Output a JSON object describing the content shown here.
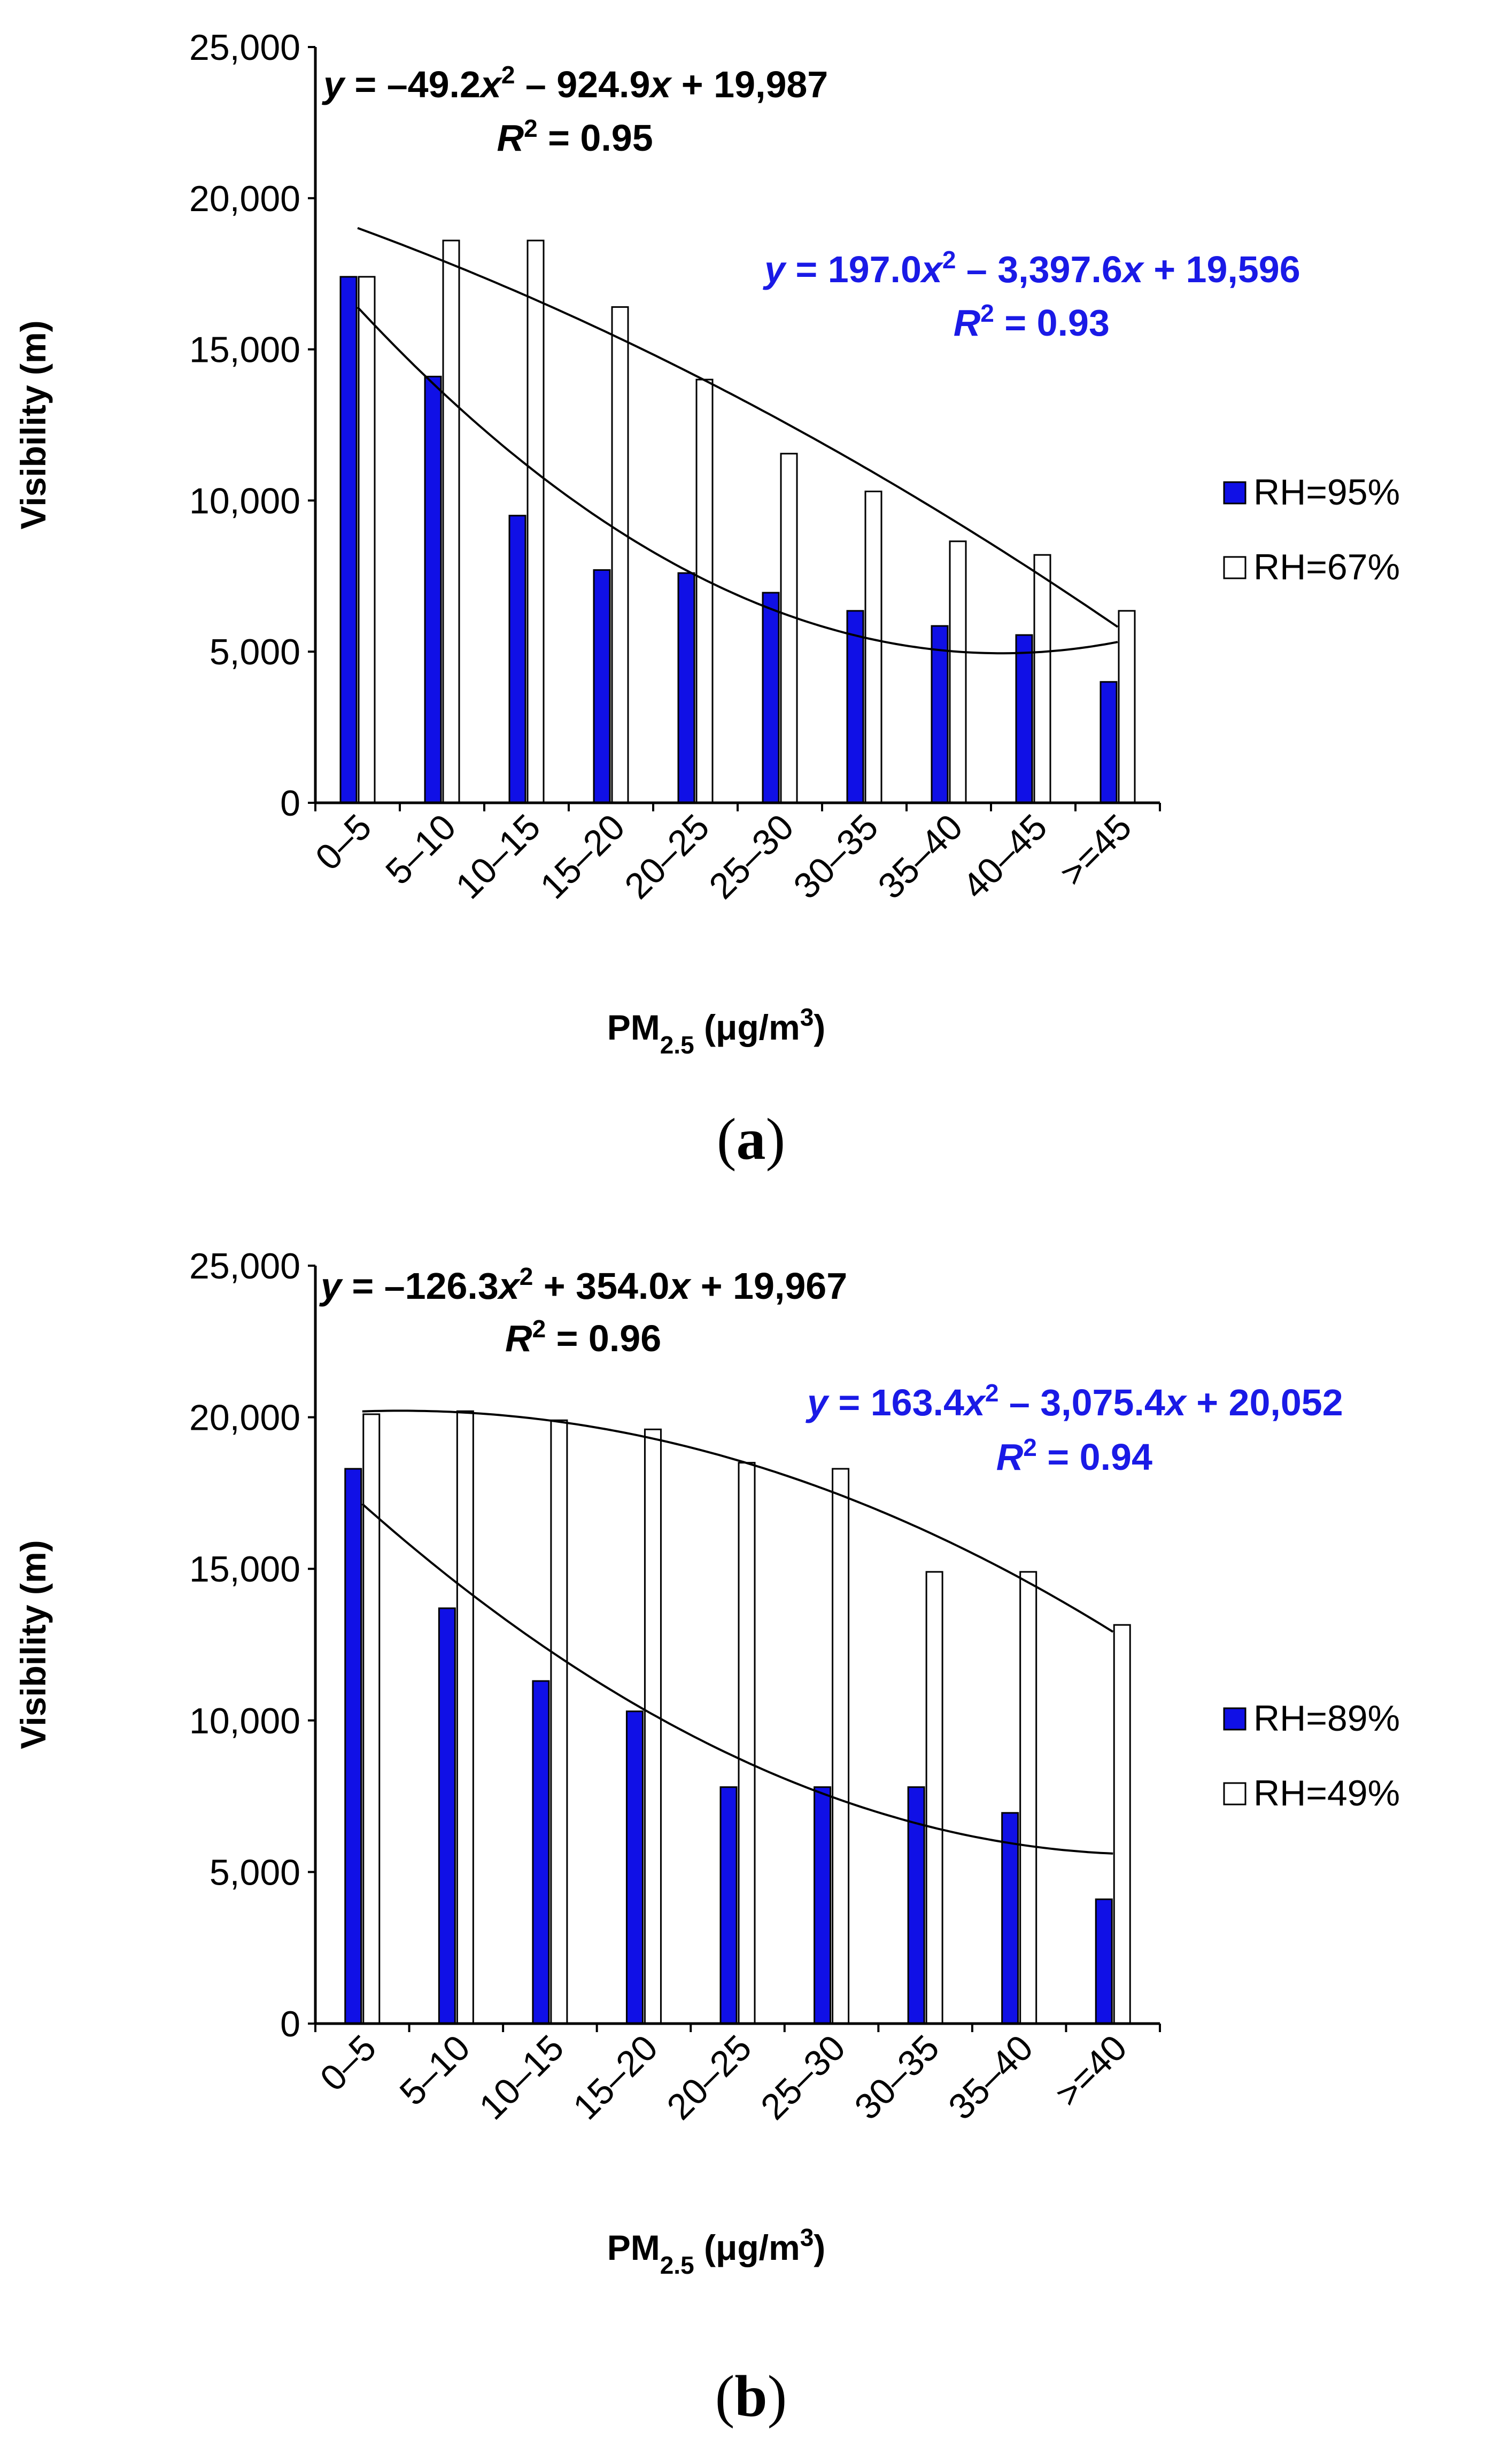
{
  "colors": {
    "blue_bar": "#1010E6",
    "white_bar": "#FFFFFF",
    "blue_text": "#1A1AE6",
    "black": "#000000"
  },
  "chart_data": [
    {
      "type": "bar",
      "panel_label": "a",
      "categories": [
        "0–5",
        "5–10",
        "10–15",
        "15–20",
        "20–25",
        "25–30",
        "30–35",
        "35–40",
        "40–45",
        ">=45"
      ],
      "series": [
        {
          "name": "RH=95%",
          "color": "#1010E6",
          "values": [
            17400,
            14100,
            9500,
            7700,
            7600,
            6950,
            6350,
            5850,
            5550,
            4000
          ]
        },
        {
          "name": "RH=67%",
          "color": "#FFFFFF",
          "values": [
            17400,
            18600,
            18600,
            16400,
            14000,
            11550,
            10300,
            8650,
            8200,
            6350
          ]
        }
      ],
      "trendlines": [
        {
          "series": "RH=95%",
          "equation_parts": [
            "y",
            " = 197.0",
            "x",
            "2",
            " – 3,397.6",
            "x",
            " + 19,596"
          ],
          "r2_label": "R",
          "r2_sup": "2",
          "r2_value": " = 0.93",
          "color": "#1A1AE6",
          "coef": [
            197.0,
            -3397.6,
            19596
          ]
        },
        {
          "series": "RH=67%",
          "equation_parts": [
            "y",
            " = –49.2",
            "x",
            "2",
            " – 924.9",
            "x",
            " + 19,987"
          ],
          "r2_label": "R",
          "r2_sup": "2",
          "r2_value": " = 0.95",
          "color": "#000000",
          "coef": [
            -49.2,
            -924.9,
            19987
          ]
        }
      ],
      "ylabel": "Visibility (m)",
      "xlabel_main": "PM",
      "xlabel_sub": "2.5",
      "xlabel_rest": " (μg/m",
      "xlabel_sup": "3",
      "xlabel_close": ")",
      "ylim": [
        0,
        25000
      ],
      "yticks": [
        "0",
        "5,000",
        "10,000",
        "15,000",
        "20,000",
        "25,000"
      ],
      "legend_position": "right"
    },
    {
      "type": "bar",
      "panel_label": "b",
      "categories": [
        "0–5",
        "5–10",
        "10–15",
        "15–20",
        "20–25",
        "25–30",
        "30–35",
        "35–40",
        ">=40"
      ],
      "series": [
        {
          "name": "RH=89%",
          "color": "#1010E6",
          "values": [
            18300,
            13700,
            11300,
            10300,
            7800,
            7800,
            7800,
            6950,
            4100
          ]
        },
        {
          "name": "RH=49%",
          "color": "#FFFFFF",
          "values": [
            20100,
            20200,
            19900,
            19600,
            18500,
            18300,
            14900,
            14900,
            13150
          ]
        }
      ],
      "trendlines": [
        {
          "series": "RH=89%",
          "equation_parts": [
            "y",
            " = 163.4",
            "x",
            "2",
            " – 3,075.4",
            "x",
            " + 20,052"
          ],
          "r2_label": "R",
          "r2_sup": "2",
          "r2_value": " = 0.94",
          "color": "#1A1AE6",
          "coef": [
            163.4,
            -3075.4,
            20052
          ]
        },
        {
          "series": "RH=49%",
          "equation_parts": [
            "y",
            " = –126.3",
            "x",
            "2",
            " + 354.0",
            "x",
            " + 19,967"
          ],
          "r2_label": "R",
          "r2_sup": "2",
          "r2_value": " = 0.96",
          "color": "#000000",
          "coef": [
            -126.3,
            354.0,
            19967
          ]
        }
      ],
      "ylabel": "Visibility (m)",
      "xlabel_main": "PM",
      "xlabel_sub": "2.5",
      "xlabel_rest": " (μg/m",
      "xlabel_sup": "3",
      "xlabel_close": ")",
      "ylim": [
        0,
        25000
      ],
      "yticks": [
        "0",
        "5,000",
        "10,000",
        "15,000",
        "20,000",
        "25,000"
      ],
      "legend_position": "right"
    }
  ]
}
